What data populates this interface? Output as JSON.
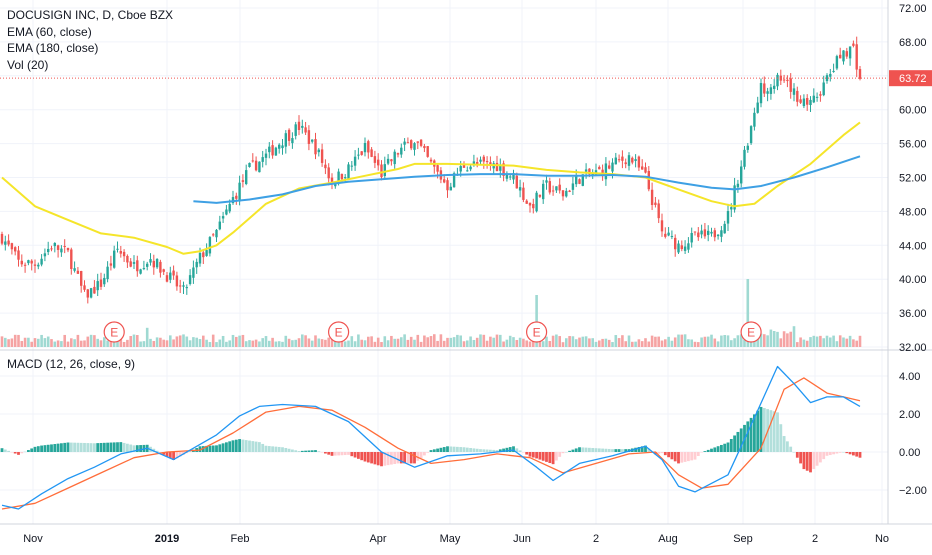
{
  "legend": {
    "title": "DOCUSIGN INC, D, Cboe BZX",
    "ema1": "EMA (60, close)",
    "ema2": "EMA (180, close)",
    "vol": "Vol (20)",
    "macd": "MACD (12, 26, close, 9)"
  },
  "price_label": "63.72",
  "earnings_marker": "E",
  "colors": {
    "up": "#26a69a",
    "down": "#ef5350",
    "ema60": "#f5e52a",
    "ema180": "#3ea0e4",
    "macd_line": "#2196f3",
    "signal_line": "#ff6d3a",
    "hist_up_strong": "#26a69a",
    "hist_up_weak": "#b2dfdb",
    "hist_down_strong": "#ef5350",
    "hist_down_weak": "#ffcdd2",
    "last_price": "#ef5350"
  },
  "chart_data": [
    {
      "type": "candlestick",
      "title": "DOCUSIGN INC, D, Cboe BZX",
      "ylim": [
        32,
        72
      ],
      "y_ticks": [
        "72.00",
        "68.00",
        "64.00",
        "60.00",
        "56.00",
        "52.00",
        "48.00",
        "44.00",
        "40.00",
        "36.00",
        "32.00"
      ],
      "x_ticks": [
        "Nov",
        "2019",
        "Feb",
        "Apr",
        "May",
        "Jun",
        "2",
        "Aug",
        "Sep",
        "2",
        "No"
      ],
      "last_price": 63.72,
      "close_path": [
        [
          0,
          45.0
        ],
        [
          5,
          42.0
        ],
        [
          10,
          41.8
        ],
        [
          15,
          44.0
        ],
        [
          20,
          43.0
        ],
        [
          25,
          38.0
        ],
        [
          30,
          39.5
        ],
        [
          35,
          43.5
        ],
        [
          40,
          41.5
        ],
        [
          45,
          42.5
        ],
        [
          50,
          40.5
        ],
        [
          55,
          38.5
        ],
        [
          60,
          42.5
        ],
        [
          65,
          45.5
        ],
        [
          70,
          49.5
        ],
        [
          75,
          53.0
        ],
        [
          80,
          54.5
        ],
        [
          85,
          56.5
        ],
        [
          90,
          58.0
        ],
        [
          95,
          55.5
        ],
        [
          100,
          51.5
        ],
        [
          105,
          53.0
        ],
        [
          110,
          55.5
        ],
        [
          115,
          52.5
        ],
        [
          120,
          55.0
        ],
        [
          125,
          56.5
        ],
        [
          130,
          53.5
        ],
        [
          135,
          51.0
        ],
        [
          140,
          53.5
        ],
        [
          145,
          53.5
        ],
        [
          150,
          53.5
        ],
        [
          155,
          52.0
        ],
        [
          160,
          48.5
        ],
        [
          165,
          51.0
        ],
        [
          170,
          50.0
        ],
        [
          175,
          52.0
        ],
        [
          180,
          52.5
        ],
        [
          185,
          53.5
        ],
        [
          190,
          54.5
        ],
        [
          195,
          52.0
        ],
        [
          200,
          45.5
        ],
        [
          205,
          44.0
        ],
        [
          210,
          45.0
        ],
        [
          215,
          45.0
        ],
        [
          220,
          47.5
        ],
        [
          225,
          55.0
        ],
        [
          230,
          62.5
        ],
        [
          235,
          63.5
        ],
        [
          240,
          62.0
        ],
        [
          245,
          60.5
        ],
        [
          250,
          63.5
        ],
        [
          255,
          67.0
        ],
        [
          258,
          67.2
        ],
        [
          260,
          63.72
        ]
      ],
      "ema60_path": [
        [
          0,
          52.0
        ],
        [
          10,
          48.6
        ],
        [
          20,
          47.0
        ],
        [
          30,
          45.4
        ],
        [
          40,
          44.9
        ],
        [
          50,
          43.8
        ],
        [
          55,
          43.0
        ],
        [
          60,
          43.3
        ],
        [
          65,
          44.0
        ],
        [
          70,
          45.5
        ],
        [
          75,
          47.2
        ],
        [
          80,
          48.9
        ],
        [
          90,
          50.7
        ],
        [
          100,
          51.4
        ],
        [
          110,
          52.2
        ],
        [
          120,
          53.0
        ],
        [
          125,
          53.6
        ],
        [
          135,
          53.6
        ],
        [
          145,
          53.5
        ],
        [
          155,
          53.4
        ],
        [
          165,
          52.9
        ],
        [
          175,
          52.6
        ],
        [
          185,
          52.4
        ],
        [
          195,
          52.0
        ],
        [
          205,
          50.6
        ],
        [
          215,
          49.2
        ],
        [
          222,
          48.6
        ],
        [
          228,
          48.9
        ],
        [
          235,
          51.0
        ],
        [
          245,
          53.6
        ],
        [
          255,
          57.0
        ],
        [
          260,
          58.5
        ]
      ],
      "ema180_path": [
        [
          58,
          49.2
        ],
        [
          65,
          49.0
        ],
        [
          75,
          49.4
        ],
        [
          85,
          50.0
        ],
        [
          95,
          51.0
        ],
        [
          105,
          51.5
        ],
        [
          115,
          51.8
        ],
        [
          125,
          52.1
        ],
        [
          135,
          52.3
        ],
        [
          145,
          52.4
        ],
        [
          155,
          52.4
        ],
        [
          165,
          52.2
        ],
        [
          175,
          52.2
        ],
        [
          185,
          52.3
        ],
        [
          195,
          52.1
        ],
        [
          205,
          51.4
        ],
        [
          215,
          50.8
        ],
        [
          222,
          50.6
        ],
        [
          230,
          51.0
        ],
        [
          240,
          52.0
        ],
        [
          250,
          53.2
        ],
        [
          260,
          54.5
        ]
      ],
      "volume_spikes": [
        {
          "day": 44,
          "value": 2.4
        },
        {
          "day": 162,
          "value": 6.5
        },
        {
          "day": 226,
          "value": 8.5
        },
        {
          "day": 240,
          "value": 2.6
        }
      ],
      "earnings_days": [
        34,
        102,
        162,
        227
      ]
    },
    {
      "type": "macd",
      "title": "MACD (12, 26, close, 9)",
      "ylim": [
        -4,
        5
      ],
      "y_ticks": [
        "4.00",
        "2.00",
        "0.00",
        "−2.00"
      ],
      "macd_path": [
        [
          0,
          -2.8
        ],
        [
          5,
          -3.0
        ],
        [
          12,
          -2.2
        ],
        [
          20,
          -1.4
        ],
        [
          28,
          -0.8
        ],
        [
          36,
          -0.1
        ],
        [
          44,
          0.2
        ],
        [
          52,
          -0.4
        ],
        [
          58,
          0.2
        ],
        [
          65,
          0.9
        ],
        [
          72,
          1.9
        ],
        [
          78,
          2.4
        ],
        [
          85,
          2.5
        ],
        [
          95,
          2.4
        ],
        [
          105,
          1.6
        ],
        [
          115,
          0.0
        ],
        [
          125,
          -0.8
        ],
        [
          135,
          -0.2
        ],
        [
          145,
          -0.1
        ],
        [
          155,
          0.1
        ],
        [
          162,
          -0.8
        ],
        [
          167,
          -1.5
        ],
        [
          175,
          -0.6
        ],
        [
          185,
          -0.2
        ],
        [
          195,
          0.3
        ],
        [
          200,
          -0.4
        ],
        [
          205,
          -1.8
        ],
        [
          210,
          -2.1
        ],
        [
          220,
          -1.2
        ],
        [
          228,
          1.8
        ],
        [
          235,
          4.5
        ],
        [
          240,
          3.6
        ],
        [
          245,
          2.6
        ],
        [
          250,
          2.9
        ],
        [
          255,
          2.9
        ],
        [
          260,
          2.4
        ]
      ],
      "signal_path": [
        [
          0,
          -3.0
        ],
        [
          10,
          -2.7
        ],
        [
          20,
          -1.9
        ],
        [
          30,
          -1.1
        ],
        [
          40,
          -0.3
        ],
        [
          50,
          0.0
        ],
        [
          60,
          0.1
        ],
        [
          70,
          1.0
        ],
        [
          80,
          2.1
        ],
        [
          90,
          2.4
        ],
        [
          100,
          2.2
        ],
        [
          110,
          1.3
        ],
        [
          120,
          0.2
        ],
        [
          130,
          -0.6
        ],
        [
          140,
          -0.4
        ],
        [
          150,
          -0.1
        ],
        [
          160,
          -0.3
        ],
        [
          170,
          -1.1
        ],
        [
          180,
          -0.6
        ],
        [
          190,
          -0.1
        ],
        [
          198,
          0.0
        ],
        [
          205,
          -1.2
        ],
        [
          212,
          -1.9
        ],
        [
          220,
          -1.7
        ],
        [
          230,
          0.2
        ],
        [
          237,
          3.3
        ],
        [
          243,
          3.9
        ],
        [
          250,
          3.1
        ],
        [
          255,
          2.9
        ],
        [
          260,
          2.7
        ]
      ]
    }
  ]
}
